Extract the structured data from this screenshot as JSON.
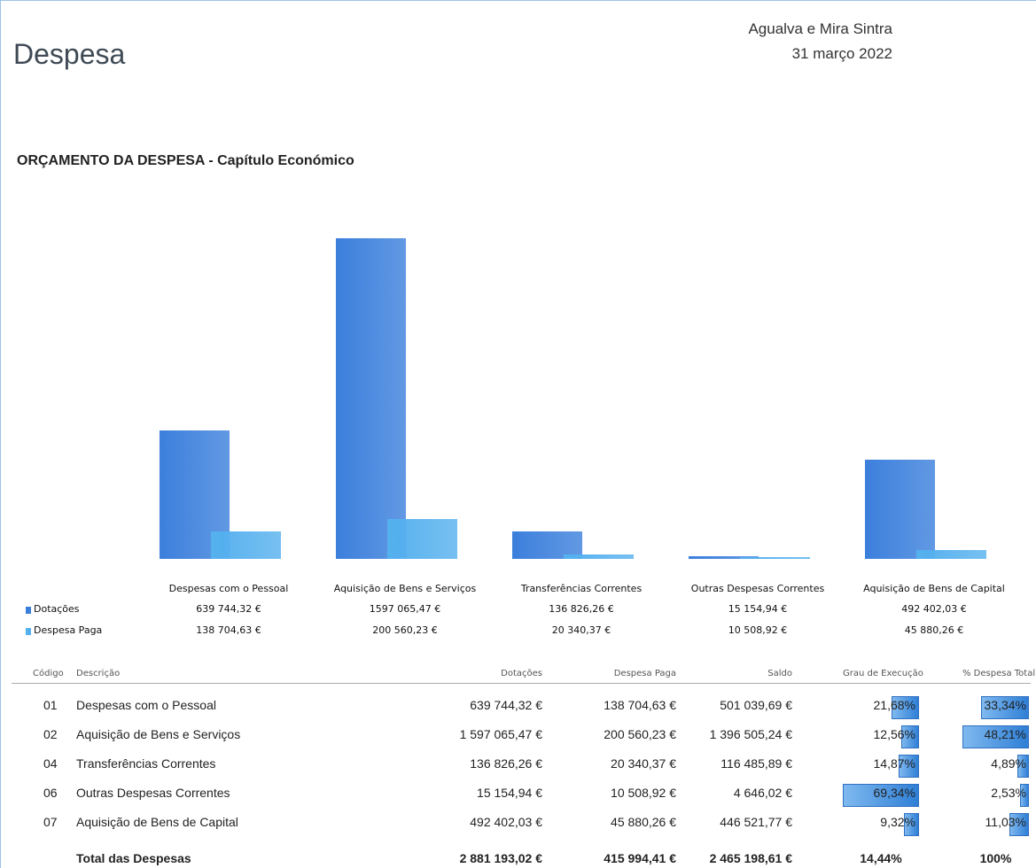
{
  "header": {
    "title": "Despesa",
    "location": "Agualva e Mira Sintra",
    "date": "31 março 2022"
  },
  "chart_data": {
    "type": "bar",
    "title": "ORÇAMENTO DA DESPESA - Capítulo Económico",
    "categories": [
      "Despesas com o Pessoal",
      "Aquisição de Bens e Serviços",
      "Transferências Correntes",
      "Outras Despesas Correntes",
      "Aquisição de Bens de Capital"
    ],
    "series": [
      {
        "name": "Dotações",
        "color": "#3b7fdc",
        "values": [
          639744.32,
          1597065.47,
          136826.26,
          15154.94,
          492402.03
        ],
        "value_labels": [
          "639 744,32 €",
          "1597 065,47 €",
          "136 826,26 €",
          "15 154,94 €",
          "492 402,03 €"
        ]
      },
      {
        "name": "Despesa Paga",
        "color": "#55b0ee",
        "values": [
          138704.63,
          200560.23,
          20340.37,
          10508.92,
          45880.26
        ],
        "value_labels": [
          "138 704,63 €",
          "200 560,23 €",
          "20 340,37 €",
          "10 508,92 €",
          "45 880,26 €"
        ]
      }
    ]
  },
  "table": {
    "columns": [
      "Código",
      "Descrição",
      "Dotações",
      "Despesa Paga",
      "Saldo",
      "Grau de Execução",
      "% Despesa Total"
    ],
    "rows": [
      [
        "01",
        "Despesas com o Pessoal",
        "639 744,32 €",
        "138 704,63 €",
        "501 039,69 €",
        {
          "value": 21.68,
          "label": "21,68%"
        },
        {
          "value": 33.34,
          "label": "33,34%"
        }
      ],
      [
        "02",
        "Aquisição de Bens e Serviços",
        "1 597 065,47 €",
        "200 560,23 €",
        "1 396 505,24 €",
        {
          "value": 12.56,
          "label": "12,56%"
        },
        {
          "value": 48.21,
          "label": "48,21%"
        }
      ],
      [
        "04",
        "Transferências Correntes",
        "136 826,26 €",
        "20 340,37 €",
        "116 485,89 €",
        {
          "value": 14.87,
          "label": "14,87%"
        },
        {
          "value": 4.89,
          "label": "4,89%"
        }
      ],
      [
        "06",
        "Outras Despesas Correntes",
        "15 154,94 €",
        "10 508,92 €",
        "4 646,02 €",
        {
          "value": 69.34,
          "label": "69,34%"
        },
        {
          "value": 2.53,
          "label": "2,53%"
        }
      ],
      [
        "07",
        "Aquisição de Bens de Capital",
        "492 402,03 €",
        "45 880,26 €",
        "446 521,77 €",
        {
          "value": 9.32,
          "label": "9,32%"
        },
        {
          "value": 11.03,
          "label": "11,03%"
        }
      ]
    ],
    "total": [
      "Total das Despesas",
      "2 881 193,02 €",
      "415 994,41 €",
      "2 465 198,61 €",
      "14,44%",
      "100%"
    ]
  }
}
